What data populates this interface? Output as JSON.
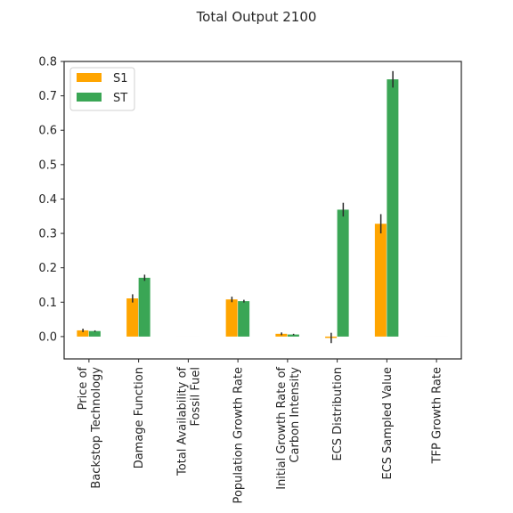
{
  "chart_data": {
    "type": "bar",
    "title": "Total Output 2100",
    "xlabel": "",
    "ylabel": "",
    "ylim": [
      -0.065,
      0.8
    ],
    "yticks": [
      0.0,
      0.1,
      0.2,
      0.3,
      0.4,
      0.5,
      0.6,
      0.7,
      0.8
    ],
    "ytick_labels": [
      "0.0",
      "0.1",
      "0.2",
      "0.3",
      "0.4",
      "0.5",
      "0.6",
      "0.7",
      "0.8"
    ],
    "grid": false,
    "legend_position": "top-left",
    "categories": [
      "Price of\nBackstop Technology",
      "Damage Function",
      "Total Availability of\nFossil Fuel",
      "Population Growth Rate",
      "Initial Growth Rate of\nCarbon Intensity",
      "ECS Distribution",
      "ECS Sampled Value",
      "TFP Growth Rate"
    ],
    "series": [
      {
        "name": "S1",
        "color": "#FFA500",
        "values": [
          0.018,
          0.111,
          0.0,
          0.108,
          0.008,
          -0.004,
          0.328,
          0.0
        ],
        "errors": [
          0.005,
          0.012,
          0.0,
          0.008,
          0.004,
          0.015,
          0.028,
          0.0
        ]
      },
      {
        "name": "ST",
        "color": "#3AA655",
        "values": [
          0.016,
          0.171,
          0.0,
          0.103,
          0.006,
          0.369,
          0.748,
          0.0
        ],
        "errors": [
          0.002,
          0.009,
          0.0,
          0.004,
          0.002,
          0.02,
          0.024,
          0.0
        ]
      }
    ]
  }
}
